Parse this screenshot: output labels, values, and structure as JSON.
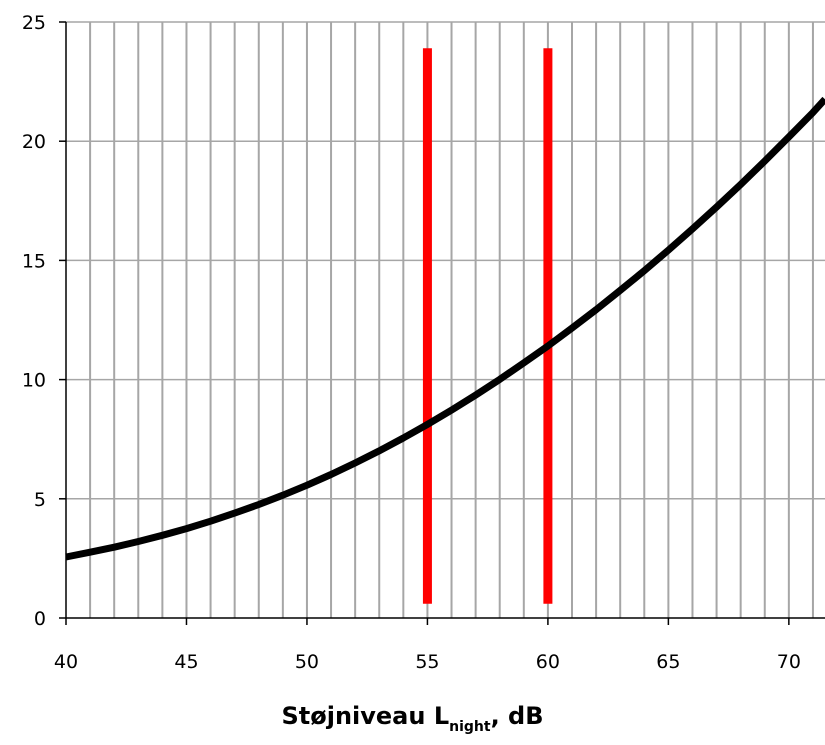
{
  "chart_data": {
    "type": "line",
    "title": "",
    "xlabel": {
      "main": "Støjniveau L",
      "subscript": "night",
      "suffix": ", dB"
    },
    "ylabel": "",
    "xlim": [
      40,
      71.5
    ],
    "ylim": [
      0,
      25
    ],
    "x_ticks": [
      40,
      45,
      50,
      55,
      60,
      65,
      70
    ],
    "x_tick_labels": [
      "40",
      "45",
      "50",
      "55",
      "60",
      "65",
      "70"
    ],
    "y_ticks": [
      0,
      5,
      10,
      15,
      20,
      25
    ],
    "y_tick_labels": [
      "0",
      "5",
      "10",
      "15",
      "20",
      "25"
    ],
    "x_minor_step": 1,
    "grid": {
      "vertical": true,
      "horizontal": true
    },
    "series": [
      {
        "color": "#000000",
        "x": [
          40,
          41,
          42,
          43,
          44,
          45,
          46,
          47,
          48,
          49,
          50,
          51,
          52,
          53,
          54,
          55,
          56,
          57,
          58,
          59,
          60,
          61,
          62,
          63,
          64,
          65,
          66,
          67,
          68,
          69,
          70,
          71,
          71.5
        ],
        "y": [
          2.56,
          2.76,
          2.97,
          3.21,
          3.47,
          3.75,
          4.06,
          4.4,
          4.76,
          5.15,
          5.57,
          6.02,
          6.5,
          7.01,
          7.55,
          8.12,
          8.72,
          9.35,
          10.01,
          10.7,
          11.41,
          12.16,
          12.93,
          13.74,
          14.57,
          15.43,
          16.32,
          17.24,
          18.19,
          19.17,
          20.18,
          21.21,
          21.76
        ]
      }
    ],
    "vertical_markers": [
      {
        "x": 55,
        "y_range": [
          0.6,
          23.9
        ],
        "color": "#ff0000"
      },
      {
        "x": 60,
        "y_range": [
          0.6,
          23.9
        ],
        "color": "#ff0000"
      }
    ],
    "colors": {
      "grid": "#a6a6a6",
      "axis": "#000000",
      "curve": "#000000",
      "markers": "#ff0000"
    }
  }
}
